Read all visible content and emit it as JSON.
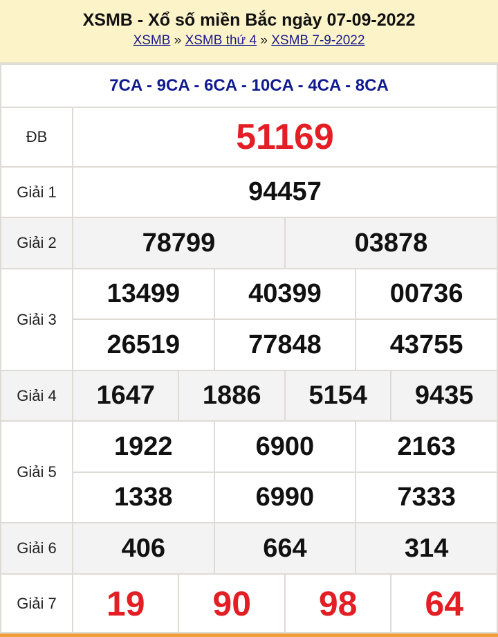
{
  "header": {
    "title": "XSMB - Xổ số miền Bắc ngày 07-09-2022",
    "breadcrumb": [
      "XSMB",
      "XSMB thứ 4",
      "XSMB 7-9-2022"
    ],
    "separator": "»"
  },
  "codes": "7CA - 9CA - 6CA - 10CA - 4CA - 8CA",
  "prizes": {
    "db": {
      "label": "ĐB",
      "values": [
        "51169"
      ]
    },
    "g1": {
      "label": "Giải 1",
      "values": [
        "94457"
      ]
    },
    "g2": {
      "label": "Giải 2",
      "values": [
        "78799",
        "03878"
      ]
    },
    "g3": {
      "label": "Giải 3",
      "values": [
        "13499",
        "40399",
        "00736",
        "26519",
        "77848",
        "43755"
      ]
    },
    "g4": {
      "label": "Giải 4",
      "values": [
        "1647",
        "1886",
        "5154",
        "9435"
      ]
    },
    "g5": {
      "label": "Giải 5",
      "values": [
        "1922",
        "6900",
        "2163",
        "1338",
        "6990",
        "7333"
      ]
    },
    "g6": {
      "label": "Giải 6",
      "values": [
        "406",
        "664",
        "314"
      ]
    },
    "g7": {
      "label": "Giải 7",
      "values": [
        "19",
        "90",
        "98",
        "64"
      ]
    }
  },
  "colors": {
    "header_bg": "#fcf3c9",
    "link": "#1a1a8c",
    "codes": "#0f1a8f",
    "highlight": "#e31e24",
    "alt_row": "#f3f3f3",
    "footer": "#f29c38"
  }
}
